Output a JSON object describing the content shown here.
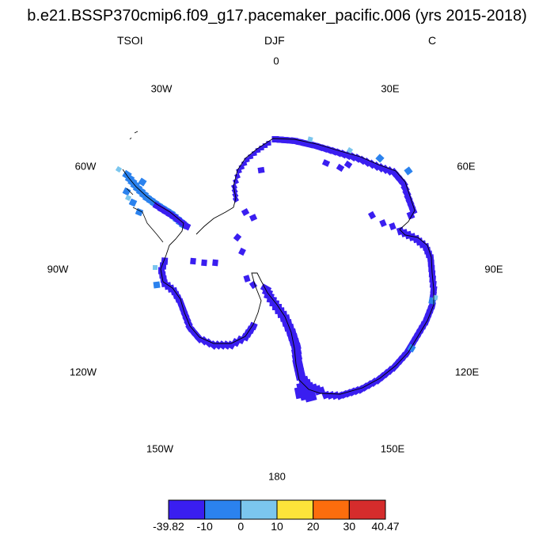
{
  "header": {
    "title": "b.e21.BSSP370cmip6.f09_g17.pacemaker_pacific.006 (yrs 2015-2018)",
    "left": "TSOI",
    "center": "DJF",
    "right": "C"
  },
  "longitude_labels": {
    "lon_0": "0",
    "lon_30e": "30E",
    "lon_60e": "60E",
    "lon_90e": "90E",
    "lon_120e": "120E",
    "lon_150e": "150E",
    "lon_180": "180",
    "lon_150w": "150W",
    "lon_120w": "120W",
    "lon_90w": "90W",
    "lon_60w": "60W",
    "lon_30w": "30W"
  },
  "colorbar": {
    "colors": [
      "#3a1ef0",
      "#2b82ee",
      "#7bc6ee",
      "#fde43a",
      "#fc6d0d",
      "#d52c2c"
    ],
    "labels": [
      "-39.82",
      "-10",
      "0",
      "10",
      "20",
      "30",
      "40.47"
    ]
  },
  "map": {
    "projection": "south polar stereographic",
    "region": "Antarctica"
  }
}
